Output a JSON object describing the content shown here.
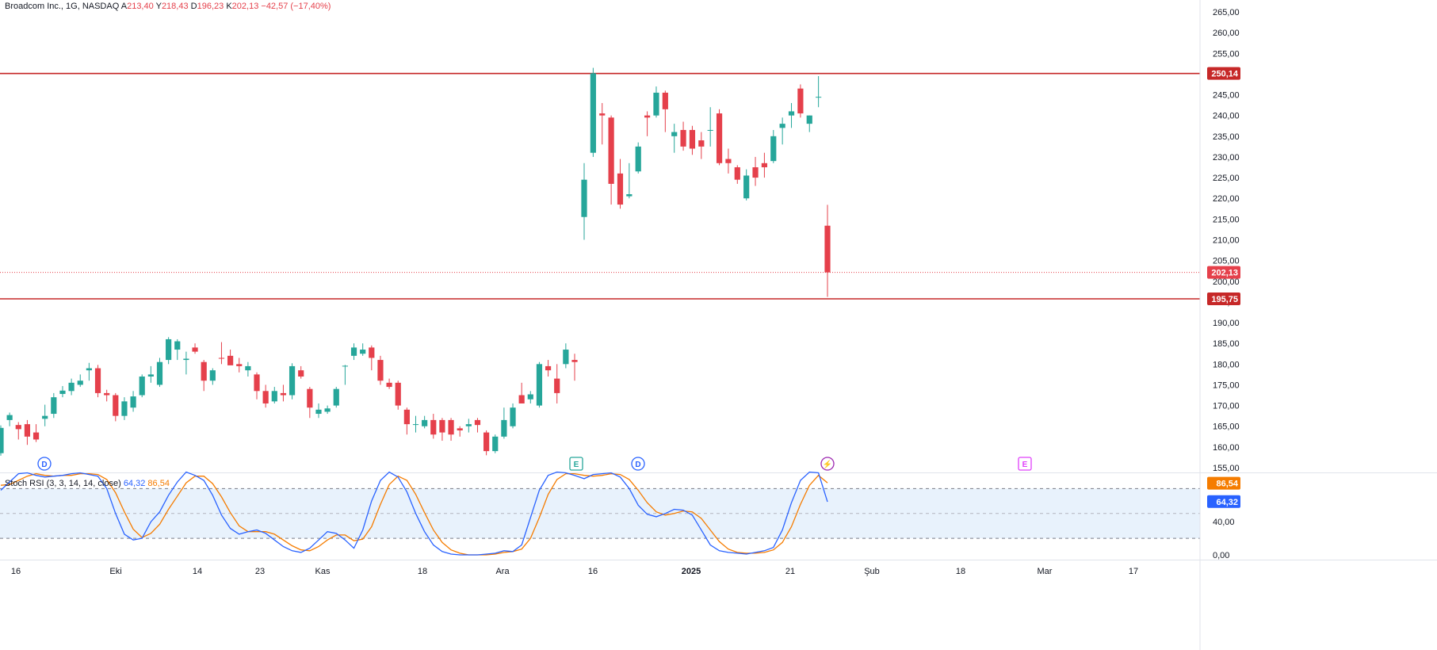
{
  "header": {
    "symbol": "Broadcom Inc., 1G, NASDAQ",
    "o_label": "A",
    "o_value": "213,40",
    "h_label": "Y",
    "h_value": "218,43",
    "l_label": "D",
    "l_value": "196,23",
    "c_label": "K",
    "c_value": "202,13",
    "change": "−42,57 (−17,40%)"
  },
  "stoch": {
    "label": "Stoch RSI (3, 3, 14, 14, close)",
    "k_value": "64,32",
    "d_value": "86,54"
  },
  "colors": {
    "up": "#26a69a",
    "down": "#e5404b",
    "level_line": "#c62828",
    "k_line": "#2962ff",
    "d_line": "#f57c00",
    "band_fill": "#e8f2fc"
  },
  "chart_data": {
    "type": "candlestick",
    "x_labels": [
      "16",
      "Eki",
      "14",
      "23",
      "Kas",
      "18",
      "Ara",
      "16",
      "2025",
      "21",
      "Şub",
      "18",
      "Mar",
      "17"
    ],
    "y_ticks": [
      "265,00",
      "260,00",
      "255,00",
      "250,00",
      "245,00",
      "240,00",
      "235,00",
      "230,00",
      "225,00",
      "220,00",
      "215,00",
      "210,00",
      "205,00",
      "200,00",
      "195,00",
      "190,00",
      "185,00",
      "180,00",
      "175,00",
      "170,00",
      "165,00",
      "160,00",
      "155,00"
    ],
    "ylim": [
      155,
      265
    ],
    "levels": [
      {
        "value": 250.14,
        "label": "250,14"
      },
      {
        "value": 195.75,
        "label": "195,75"
      }
    ],
    "last_price": {
      "value": 202.13,
      "label": "202,13"
    },
    "candles": [
      {
        "o": 158.5,
        "h": 165.2,
        "l": 157.9,
        "c": 164.6
      },
      {
        "o": 166.5,
        "h": 168.3,
        "l": 165.0,
        "c": 167.7
      },
      {
        "o": 165.3,
        "h": 166.0,
        "l": 161.8,
        "c": 164.3
      },
      {
        "o": 165.5,
        "h": 166.5,
        "l": 160.5,
        "c": 162.5
      },
      {
        "o": 163.5,
        "h": 165.5,
        "l": 161.2,
        "c": 161.8
      },
      {
        "o": 166.8,
        "h": 170.2,
        "l": 165.0,
        "c": 167.5
      },
      {
        "o": 168.0,
        "h": 173.0,
        "l": 167.0,
        "c": 172.0
      },
      {
        "o": 172.8,
        "h": 174.7,
        "l": 172.0,
        "c": 173.6
      },
      {
        "o": 173.5,
        "h": 176.5,
        "l": 172.5,
        "c": 175.5
      },
      {
        "o": 175.0,
        "h": 177.5,
        "l": 174.5,
        "c": 176.0
      },
      {
        "o": 178.5,
        "h": 180.3,
        "l": 176.0,
        "c": 179.0
      },
      {
        "o": 179.0,
        "h": 179.8,
        "l": 172.0,
        "c": 173.0
      },
      {
        "o": 173.0,
        "h": 173.8,
        "l": 171.0,
        "c": 172.5
      },
      {
        "o": 172.5,
        "h": 173.0,
        "l": 166.2,
        "c": 167.5
      },
      {
        "o": 167.5,
        "h": 172.0,
        "l": 166.5,
        "c": 171.0
      },
      {
        "o": 169.5,
        "h": 173.5,
        "l": 168.5,
        "c": 172.2
      },
      {
        "o": 172.5,
        "h": 177.5,
        "l": 172.0,
        "c": 177.0
      },
      {
        "o": 177.0,
        "h": 179.5,
        "l": 175.5,
        "c": 177.5
      },
      {
        "o": 175.0,
        "h": 181.5,
        "l": 174.5,
        "c": 180.5
      },
      {
        "o": 181.0,
        "h": 186.5,
        "l": 180.0,
        "c": 186.0
      },
      {
        "o": 183.5,
        "h": 186.0,
        "l": 181.0,
        "c": 185.5
      },
      {
        "o": 181.0,
        "h": 183.0,
        "l": 177.5,
        "c": 181.3
      },
      {
        "o": 184.0,
        "h": 185.0,
        "l": 182.5,
        "c": 183.0
      },
      {
        "o": 180.5,
        "h": 181.0,
        "l": 173.5,
        "c": 176.0
      },
      {
        "o": 176.0,
        "h": 179.0,
        "l": 175.0,
        "c": 178.5
      },
      {
        "o": 181.5,
        "h": 185.3,
        "l": 180.0,
        "c": 181.3
      },
      {
        "o": 182.0,
        "h": 183.5,
        "l": 180.0,
        "c": 179.7
      },
      {
        "o": 180.0,
        "h": 181.5,
        "l": 178.0,
        "c": 179.5
      },
      {
        "o": 178.5,
        "h": 180.5,
        "l": 177.0,
        "c": 179.5
      },
      {
        "o": 177.5,
        "h": 178.0,
        "l": 171.5,
        "c": 173.5
      },
      {
        "o": 173.5,
        "h": 175.0,
        "l": 169.5,
        "c": 170.5
      },
      {
        "o": 171.0,
        "h": 174.5,
        "l": 170.5,
        "c": 173.5
      },
      {
        "o": 173.0,
        "h": 175.0,
        "l": 171.0,
        "c": 172.5
      },
      {
        "o": 172.5,
        "h": 180.2,
        "l": 171.5,
        "c": 179.5
      },
      {
        "o": 178.5,
        "h": 179.5,
        "l": 176.5,
        "c": 177.0
      },
      {
        "o": 174.0,
        "h": 174.5,
        "l": 167.0,
        "c": 169.5
      },
      {
        "o": 168.0,
        "h": 170.5,
        "l": 167.0,
        "c": 169.0
      },
      {
        "o": 168.5,
        "h": 170.0,
        "l": 168.0,
        "c": 169.3
      },
      {
        "o": 170.0,
        "h": 174.5,
        "l": 169.5,
        "c": 174.0
      },
      {
        "o": 179.5,
        "h": 179.8,
        "l": 175.0,
        "c": 179.6
      },
      {
        "o": 182.0,
        "h": 185.0,
        "l": 181.0,
        "c": 184.0
      },
      {
        "o": 182.5,
        "h": 185.0,
        "l": 182.0,
        "c": 183.5
      },
      {
        "o": 184.0,
        "h": 184.5,
        "l": 178.5,
        "c": 181.5
      },
      {
        "o": 181.0,
        "h": 182.0,
        "l": 175.0,
        "c": 176.0
      },
      {
        "o": 175.5,
        "h": 176.5,
        "l": 174.0,
        "c": 174.5
      },
      {
        "o": 175.5,
        "h": 176.0,
        "l": 169.0,
        "c": 170.0
      },
      {
        "o": 169.0,
        "h": 169.5,
        "l": 163.0,
        "c": 165.5
      },
      {
        "o": 165.5,
        "h": 167.5,
        "l": 163.5,
        "c": 165.5
      },
      {
        "o": 165.0,
        "h": 167.5,
        "l": 164.5,
        "c": 166.5
      },
      {
        "o": 166.5,
        "h": 168.0,
        "l": 162.0,
        "c": 163.0
      },
      {
        "o": 166.5,
        "h": 167.0,
        "l": 161.5,
        "c": 163.5
      },
      {
        "o": 166.5,
        "h": 167.0,
        "l": 161.5,
        "c": 163.0
      },
      {
        "o": 164.5,
        "h": 165.0,
        "l": 162.5,
        "c": 164.0
      },
      {
        "o": 165.0,
        "h": 166.8,
        "l": 163.5,
        "c": 165.5
      },
      {
        "o": 166.5,
        "h": 167.0,
        "l": 163.5,
        "c": 165.3
      },
      {
        "o": 163.5,
        "h": 164.0,
        "l": 158.0,
        "c": 159.0
      },
      {
        "o": 159.0,
        "h": 163.0,
        "l": 158.5,
        "c": 162.5
      },
      {
        "o": 162.5,
        "h": 169.5,
        "l": 162.0,
        "c": 166.5
      },
      {
        "o": 165.0,
        "h": 170.5,
        "l": 164.5,
        "c": 169.5
      },
      {
        "o": 172.5,
        "h": 175.5,
        "l": 170.5,
        "c": 170.5
      },
      {
        "o": 171.5,
        "h": 173.5,
        "l": 170.5,
        "c": 172.7
      },
      {
        "o": 170.0,
        "h": 180.5,
        "l": 169.5,
        "c": 180.0
      },
      {
        "o": 179.5,
        "h": 181.0,
        "l": 177.0,
        "c": 178.5
      },
      {
        "o": 176.5,
        "h": 180.0,
        "l": 170.5,
        "c": 173.0
      },
      {
        "o": 180.0,
        "h": 185.0,
        "l": 179.0,
        "c": 183.5
      },
      {
        "o": 181.0,
        "h": 182.5,
        "l": 176.0,
        "c": 180.5
      },
      {
        "o": 215.5,
        "h": 228.5,
        "l": 210.0,
        "c": 224.5
      },
      {
        "o": 231.0,
        "h": 251.5,
        "l": 230.0,
        "c": 250.2
      },
      {
        "o": 240.5,
        "h": 243.0,
        "l": 233.0,
        "c": 240.0
      },
      {
        "o": 239.5,
        "h": 240.0,
        "l": 218.5,
        "c": 223.5
      },
      {
        "o": 226.0,
        "h": 229.5,
        "l": 217.5,
        "c": 218.5
      },
      {
        "o": 220.5,
        "h": 228.5,
        "l": 220.0,
        "c": 221.0
      },
      {
        "o": 226.5,
        "h": 233.5,
        "l": 226.0,
        "c": 232.5
      },
      {
        "o": 240.0,
        "h": 241.0,
        "l": 235.0,
        "c": 239.5
      },
      {
        "o": 240.0,
        "h": 247.0,
        "l": 239.5,
        "c": 245.5
      },
      {
        "o": 245.5,
        "h": 246.0,
        "l": 236.0,
        "c": 241.5
      },
      {
        "o": 235.0,
        "h": 238.0,
        "l": 231.0,
        "c": 236.0
      },
      {
        "o": 236.5,
        "h": 238.5,
        "l": 231.5,
        "c": 232.5
      },
      {
        "o": 236.5,
        "h": 237.5,
        "l": 230.5,
        "c": 232.0
      },
      {
        "o": 234.0,
        "h": 236.0,
        "l": 229.5,
        "c": 232.5
      },
      {
        "o": 236.5,
        "h": 242.0,
        "l": 232.5,
        "c": 236.5
      },
      {
        "o": 240.5,
        "h": 241.5,
        "l": 228.0,
        "c": 228.5
      },
      {
        "o": 229.5,
        "h": 232.0,
        "l": 226.0,
        "c": 228.5
      },
      {
        "o": 227.5,
        "h": 228.0,
        "l": 223.5,
        "c": 224.5
      },
      {
        "o": 220.0,
        "h": 227.0,
        "l": 219.5,
        "c": 225.5
      },
      {
        "o": 227.5,
        "h": 230.0,
        "l": 223.0,
        "c": 225.0
      },
      {
        "o": 228.5,
        "h": 231.0,
        "l": 225.0,
        "c": 227.5
      },
      {
        "o": 229.0,
        "h": 236.5,
        "l": 228.5,
        "c": 235.0
      },
      {
        "o": 237.0,
        "h": 239.5,
        "l": 233.0,
        "c": 238.0
      },
      {
        "o": 240.0,
        "h": 243.0,
        "l": 237.0,
        "c": 241.0
      },
      {
        "o": 246.5,
        "h": 247.5,
        "l": 239.5,
        "c": 240.5
      },
      {
        "o": 238.0,
        "h": 240.0,
        "l": 236.0,
        "c": 240.0
      },
      {
        "o": 244.5,
        "h": 249.5,
        "l": 242.0,
        "c": 244.5
      },
      {
        "o": 213.4,
        "h": 218.43,
        "l": 196.23,
        "c": 202.13
      }
    ],
    "events": [
      {
        "label": "D",
        "date_index": 3,
        "color": "#2962ff",
        "shape": "circle"
      },
      {
        "label": "E",
        "date_index": 62,
        "color": "#26a69a",
        "shape": "square"
      },
      {
        "label": "D",
        "date_index": 69,
        "color": "#2962ff",
        "shape": "circle"
      },
      {
        "label": "⚡",
        "date_index": 93,
        "color": "#9c27b0",
        "shape": "circle"
      },
      {
        "label": "E",
        "date_index": 116,
        "color": "#e040fb",
        "shape": "square"
      }
    ],
    "stoch_rsi": {
      "ylim": [
        0,
        100
      ],
      "y_ticks": [
        "40,00",
        "0,00"
      ],
      "upper_band": 80,
      "lower_band": 20,
      "k": [
        78,
        88,
        98,
        99,
        96,
        94,
        95,
        96,
        98,
        99,
        97,
        95,
        80,
        50,
        25,
        18,
        20,
        40,
        52,
        72,
        88,
        100,
        96,
        90,
        72,
        48,
        32,
        25,
        28,
        30,
        26,
        18,
        10,
        5,
        3,
        8,
        18,
        28,
        26,
        18,
        8,
        30,
        65,
        90,
        100,
        94,
        76,
        50,
        28,
        12,
        4,
        1,
        0,
        0,
        0,
        1,
        2,
        5,
        4,
        12,
        45,
        78,
        96,
        100,
        99,
        96,
        92,
        97,
        98,
        99,
        94,
        80,
        60,
        49,
        46,
        50,
        55,
        54,
        48,
        30,
        12,
        5,
        3,
        2,
        1,
        3,
        5,
        9,
        30,
        63,
        90,
        100,
        99,
        64
      ],
      "d": [
        84,
        85,
        90,
        95,
        98,
        96,
        95,
        96,
        96,
        98,
        98,
        97,
        91,
        75,
        52,
        31,
        21,
        26,
        37,
        55,
        71,
        87,
        95,
        95,
        86,
        70,
        51,
        35,
        28,
        28,
        28,
        25,
        18,
        11,
        6,
        5,
        10,
        18,
        24,
        24,
        17,
        19,
        34,
        61,
        85,
        95,
        90,
        73,
        51,
        30,
        15,
        6,
        2,
        0,
        0,
        0,
        1,
        3,
        4,
        7,
        20,
        45,
        73,
        91,
        98,
        98,
        96,
        95,
        96,
        98,
        97,
        91,
        78,
        63,
        52,
        48,
        50,
        53,
        52,
        44,
        30,
        16,
        7,
        3,
        2,
        2,
        3,
        6,
        15,
        34,
        61,
        84,
        96,
        87
      ]
    }
  }
}
